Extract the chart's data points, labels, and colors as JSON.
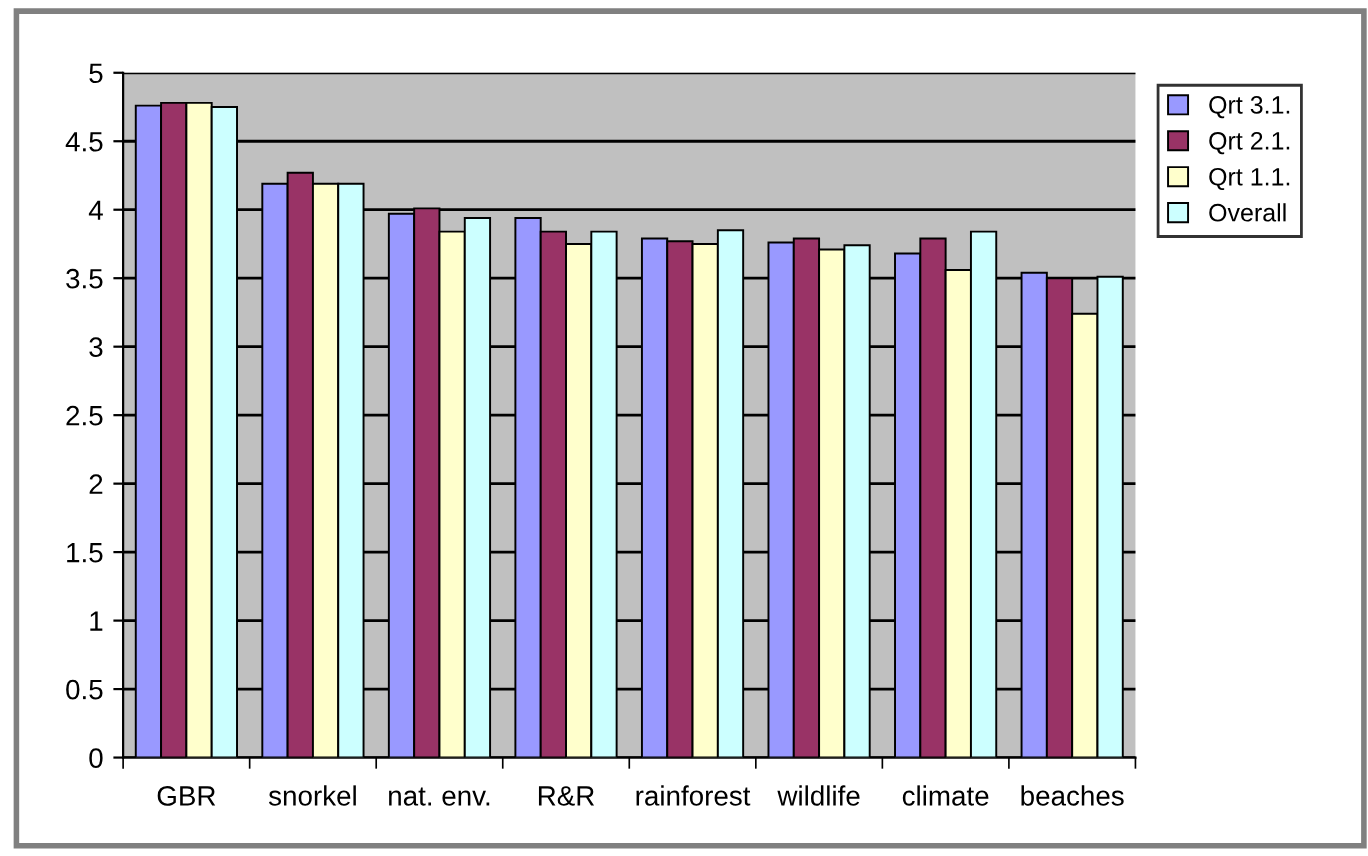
{
  "chart_data": {
    "type": "bar",
    "categories": [
      "GBR",
      "snorkel",
      "nat. env.",
      "R&R",
      "rainforest",
      "wildlife",
      "climate",
      "beaches"
    ],
    "series": [
      {
        "name": "Qrt 3.1.",
        "color": "#9999ff",
        "values": [
          4.76,
          4.19,
          3.97,
          3.94,
          3.79,
          3.76,
          3.68,
          3.54
        ]
      },
      {
        "name": "Qrt 2.1.",
        "color": "#993366",
        "values": [
          4.78,
          4.27,
          4.01,
          3.84,
          3.77,
          3.79,
          3.79,
          3.5
        ]
      },
      {
        "name": "Qrt 1.1.",
        "color": "#ffffcc",
        "values": [
          4.78,
          4.19,
          3.84,
          3.75,
          3.75,
          3.71,
          3.56,
          3.24
        ]
      },
      {
        "name": "Overall",
        "color": "#ccffff",
        "values": [
          4.75,
          4.19,
          3.94,
          3.84,
          3.85,
          3.74,
          3.84,
          3.51
        ]
      }
    ],
    "ylim": [
      0,
      5
    ],
    "yticks": [
      0,
      0.5,
      1,
      1.5,
      2,
      2.5,
      3,
      3.5,
      4,
      4.5,
      5
    ],
    "grid": "y",
    "legend": "top right"
  }
}
